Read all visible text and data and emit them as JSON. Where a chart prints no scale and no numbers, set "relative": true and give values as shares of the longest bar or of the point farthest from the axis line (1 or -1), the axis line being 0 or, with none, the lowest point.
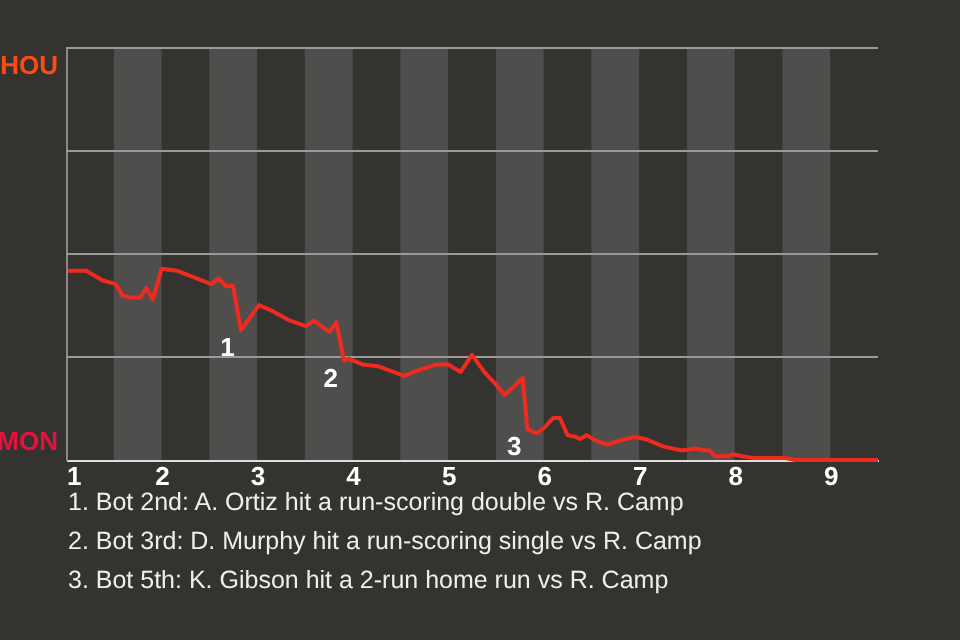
{
  "chart_data": {
    "type": "line",
    "relative": true,
    "x": [
      1.02,
      1.21,
      1.38,
      1.52,
      1.59,
      1.67,
      1.78,
      1.84,
      1.91,
      2.0,
      2.16,
      2.42,
      2.52,
      2.6,
      2.67,
      2.75,
      2.83,
      2.92,
      3.02,
      3.16,
      3.34,
      3.51,
      3.6,
      3.67,
      3.76,
      3.83,
      3.91,
      3.96,
      4.1,
      4.27,
      4.54,
      4.69,
      4.88,
      5.0,
      5.13,
      5.25,
      5.38,
      5.51,
      5.59,
      5.68,
      5.78,
      5.83,
      5.93,
      6.01,
      6.1,
      6.17,
      6.25,
      6.34,
      6.38,
      6.45,
      6.55,
      6.67,
      6.78,
      6.95,
      7.06,
      7.26,
      7.45,
      7.58,
      7.69,
      7.74,
      7.79,
      7.94,
      7.98,
      8.08,
      8.19,
      8.53,
      8.63,
      9.5
    ],
    "series": [
      {
        "color": "#f02a1e",
        "values": [
          0.99,
          0.99,
          0.94,
          0.92,
          0.86,
          0.85,
          0.85,
          0.9,
          0.84,
          1,
          0.99,
          0.94,
          0.92,
          0.95,
          0.91,
          0.91,
          0.68,
          0.74,
          0.81,
          0.78,
          0.73,
          0.7,
          0.73,
          0.7,
          0.67,
          0.72,
          0.52,
          0.53,
          0.5,
          0.49,
          0.44,
          0.47,
          0.5,
          0.5,
          0.46,
          0.55,
          0.46,
          0.39,
          0.34,
          0.38,
          0.43,
          0.16,
          0.14,
          0.17,
          0.22,
          0.22,
          0.13,
          0.12,
          0.11,
          0.13,
          0.1,
          0.08,
          0.1,
          0.12,
          0.11,
          0.07,
          0.05,
          0.06,
          0.05,
          0.05,
          0.02,
          0.02,
          0.03,
          0.02,
          0.01,
          0.01,
          0,
          0
        ]
      }
    ],
    "xlim": [
      1,
      9.5
    ],
    "xticks": [
      1,
      2,
      3,
      4,
      5,
      6,
      7,
      8,
      9
    ],
    "ref_lines": [
      {
        "axis": "y",
        "value": 0.539,
        "color": "#9a9a9a"
      },
      {
        "axis": "y",
        "value": 1.078,
        "color": "#9a9a9a"
      },
      {
        "axis": "y",
        "value": 1.616,
        "color": "#9a9a9a"
      },
      {
        "axis": "y",
        "value": 2.155,
        "color": "#9a9a9a"
      }
    ],
    "bands": [
      {
        "axis": "x",
        "from": 1.5,
        "to": 2,
        "color": "#4f4e4c"
      },
      {
        "axis": "x",
        "from": 2.5,
        "to": 3,
        "color": "#4f4e4c"
      },
      {
        "axis": "x",
        "from": 3.5,
        "to": 4,
        "color": "#4f4e4c"
      },
      {
        "axis": "x",
        "from": 4.5,
        "to": 5,
        "color": "#4f4e4c"
      },
      {
        "axis": "x",
        "from": 5.5,
        "to": 6,
        "color": "#4f4e4c"
      },
      {
        "axis": "x",
        "from": 6.5,
        "to": 7,
        "color": "#4f4e4c"
      },
      {
        "axis": "x",
        "from": 7.5,
        "to": 8,
        "color": "#4f4e4c"
      },
      {
        "axis": "x",
        "from": 8.5,
        "to": 9,
        "color": "#4f4e4c"
      }
    ],
    "annotations": [
      "HOU",
      "MON",
      {
        "text": "1",
        "x": 2.83,
        "y": 0.68
      },
      {
        "text": "2",
        "x": 3.91,
        "y": 0.52
      },
      {
        "text": "3",
        "x": 5.83,
        "y": 0.16
      },
      "1. Bot 2nd: A. Ortiz hit a run-scoring double vs R. Camp",
      "2. Bot 3rd: D. Murphy hit a run-scoring single vs R. Camp",
      "3. Bot 5th: K. Gibson hit a 2-run home run vs R. Camp"
    ]
  }
}
